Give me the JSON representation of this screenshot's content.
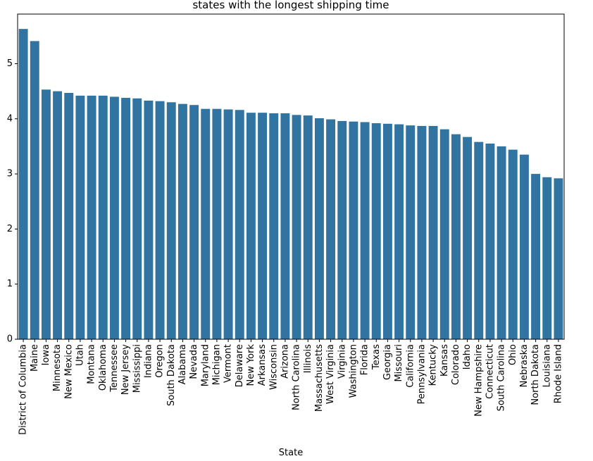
{
  "chart_data": {
    "type": "bar",
    "title": "states with the longest shipping time",
    "xlabel": "State",
    "ylabel": "",
    "ylim": [
      0,
      5.9
    ],
    "yticks": [
      0,
      1,
      2,
      3,
      4,
      5
    ],
    "bar_color": "#3274a1",
    "grid": false,
    "categories": [
      "District of Columbia",
      "Maine",
      "Iowa",
      "Minnesota",
      "New Mexico",
      "Utah",
      "Montana",
      "Oklahoma",
      "Tennessee",
      "New Jersey",
      "Mississippi",
      "Indiana",
      "Oregon",
      "South Dakota",
      "Alabama",
      "Nevada",
      "Maryland",
      "Michigan",
      "Vermont",
      "Delaware",
      "New York",
      "Arkansas",
      "Wisconsin",
      "Arizona",
      "North Carolina",
      "Illinois",
      "Massachusetts",
      "West Virginia",
      "Virginia",
      "Washington",
      "Florida",
      "Texas",
      "Georgia",
      "Missouri",
      "California",
      "Pennsylvania",
      "Kentucky",
      "Kansas",
      "Colorado",
      "Idaho",
      "New Hampshire",
      "Connecticut",
      "South Carolina",
      "Ohio",
      "Nebraska",
      "North Dakota",
      "Louisiana",
      "Rhode Island"
    ],
    "values": [
      5.63,
      5.41,
      4.53,
      4.5,
      4.47,
      4.42,
      4.42,
      4.42,
      4.4,
      4.38,
      4.37,
      4.33,
      4.32,
      4.3,
      4.27,
      4.25,
      4.18,
      4.18,
      4.17,
      4.16,
      4.11,
      4.11,
      4.1,
      4.1,
      4.07,
      4.06,
      4.01,
      3.99,
      3.96,
      3.95,
      3.94,
      3.92,
      3.91,
      3.9,
      3.88,
      3.87,
      3.87,
      3.81,
      3.72,
      3.67,
      3.58,
      3.55,
      3.5,
      3.44,
      3.35,
      3.0,
      2.94,
      2.92
    ]
  }
}
